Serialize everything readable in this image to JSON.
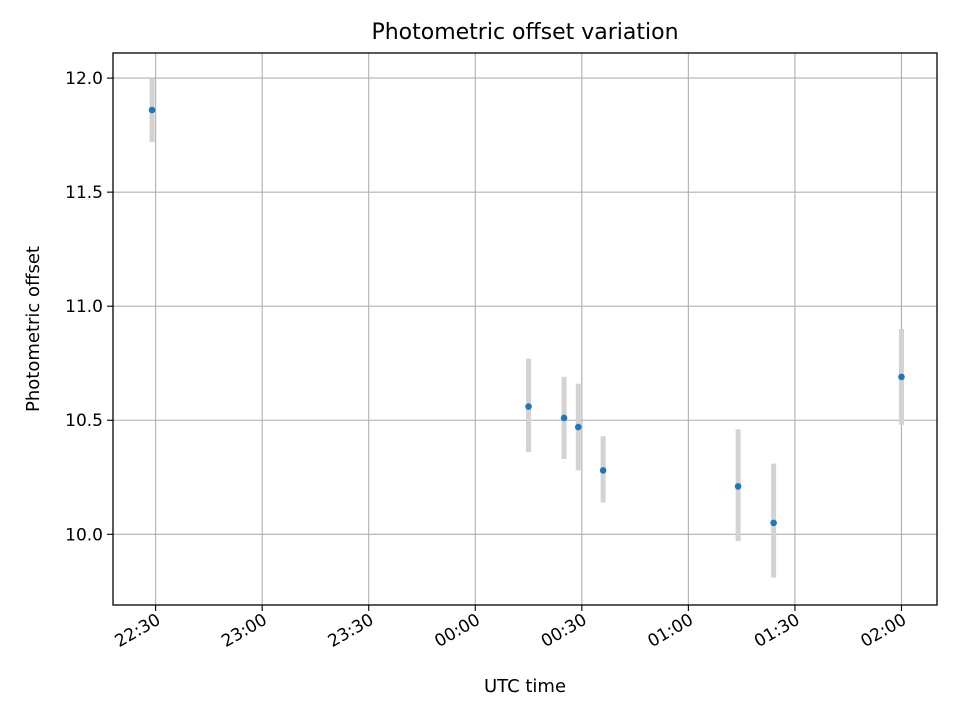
{
  "chart_data": {
    "type": "scatter",
    "title": "Photometric offset variation",
    "xlabel": "UTC time",
    "ylabel": "Photometric offset",
    "xlim": [
      "22:18",
      "02:10"
    ],
    "ylim": [
      9.69,
      12.11
    ],
    "x_ticks": [
      "22:30",
      "23:00",
      "23:30",
      "00:00",
      "00:30",
      "01:00",
      "01:30",
      "02:00"
    ],
    "y_ticks": [
      10.0,
      10.5,
      11.0,
      11.5,
      12.0
    ],
    "y_tick_labels": [
      "10.0",
      "10.5",
      "11.0",
      "11.5",
      "12.0"
    ],
    "grid": true,
    "series": [
      {
        "points": [
          {
            "x": "22:29",
            "y": 11.86,
            "err_low": 11.72,
            "err_high": 12.0
          },
          {
            "x": "00:15",
            "y": 10.56,
            "err_low": 10.36,
            "err_high": 10.77
          },
          {
            "x": "00:25",
            "y": 10.51,
            "err_low": 10.33,
            "err_high": 10.69
          },
          {
            "x": "00:29",
            "y": 10.47,
            "err_low": 10.28,
            "err_high": 10.66
          },
          {
            "x": "00:36",
            "y": 10.28,
            "err_low": 10.14,
            "err_high": 10.43
          },
          {
            "x": "01:14",
            "y": 10.21,
            "err_low": 9.97,
            "err_high": 10.46
          },
          {
            "x": "01:24",
            "y": 10.05,
            "err_low": 9.81,
            "err_high": 10.31
          },
          {
            "x": "02:00",
            "y": 10.69,
            "err_low": 10.48,
            "err_high": 10.9
          }
        ]
      }
    ],
    "colors": {
      "point": "#1f77b4",
      "errorbar": "#d3d3d3",
      "grid": "#b0b0b0",
      "axes": "#000000"
    }
  }
}
